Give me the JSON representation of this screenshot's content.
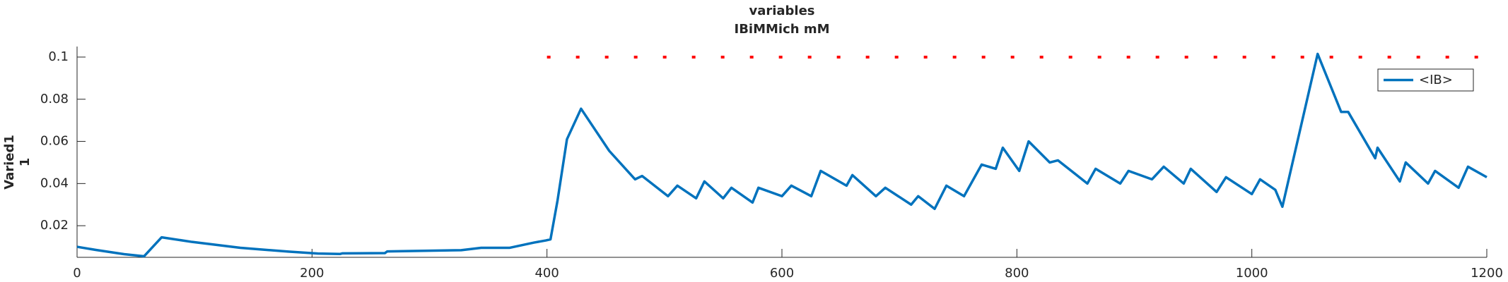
{
  "chart_data": {
    "type": "line",
    "title": [
      "variables",
      "IBiMMich mM"
    ],
    "ylabel": [
      "Varied1",
      "1"
    ],
    "x": [
      0,
      16,
      40,
      57,
      72,
      98,
      139,
      180,
      205,
      224,
      226,
      262,
      264,
      327,
      344,
      368,
      389,
      399,
      403,
      409,
      417,
      429,
      453,
      475,
      481,
      503,
      511,
      527,
      534,
      550,
      557,
      575,
      580,
      600,
      608,
      625,
      633,
      655,
      660,
      680,
      688,
      710,
      716,
      730,
      740,
      755,
      770,
      782,
      788,
      802,
      810,
      828,
      835,
      860,
      867,
      888,
      895,
      915,
      925,
      942,
      948,
      970,
      978,
      1000,
      1007,
      1020,
      1026,
      1056,
      1076,
      1082,
      1105,
      1107,
      1126,
      1131,
      1150,
      1156,
      1176,
      1184,
      1200
    ],
    "series": [
      {
        "name": "<IB>",
        "color": "#0072bd",
        "values": [
          0.01,
          0.0085,
          0.0065,
          0.0055,
          0.0145,
          0.0123,
          0.0095,
          0.0077,
          0.0068,
          0.0066,
          0.0069,
          0.007,
          0.0078,
          0.0084,
          0.0095,
          0.0095,
          0.012,
          0.013,
          0.0135,
          0.032,
          0.061,
          0.0755,
          0.0555,
          0.042,
          0.0436,
          0.034,
          0.039,
          0.033,
          0.041,
          0.033,
          0.038,
          0.031,
          0.038,
          0.034,
          0.039,
          0.034,
          0.046,
          0.039,
          0.044,
          0.034,
          0.038,
          0.03,
          0.034,
          0.028,
          0.039,
          0.034,
          0.049,
          0.047,
          0.057,
          0.046,
          0.06,
          0.05,
          0.051,
          0.04,
          0.047,
          0.04,
          0.046,
          0.042,
          0.048,
          0.04,
          0.047,
          0.036,
          0.043,
          0.035,
          0.042,
          0.037,
          0.029,
          0.1015,
          0.074,
          0.074,
          0.052,
          0.057,
          0.041,
          0.05,
          0.04,
          0.046,
          0.038,
          0.048,
          0.043
        ]
      }
    ],
    "reference_line": {
      "x": [
        400,
        1200
      ],
      "y": 0.1,
      "color": "#ff0000"
    },
    "xlim": [
      0,
      1200
    ],
    "xticks": [
      0,
      200,
      400,
      600,
      800,
      1000,
      1200
    ],
    "ylim": [
      0.005,
      0.105
    ],
    "yticks": [
      0.02,
      0.04,
      0.06,
      0.08,
      0.1
    ],
    "legend": "top-right"
  }
}
